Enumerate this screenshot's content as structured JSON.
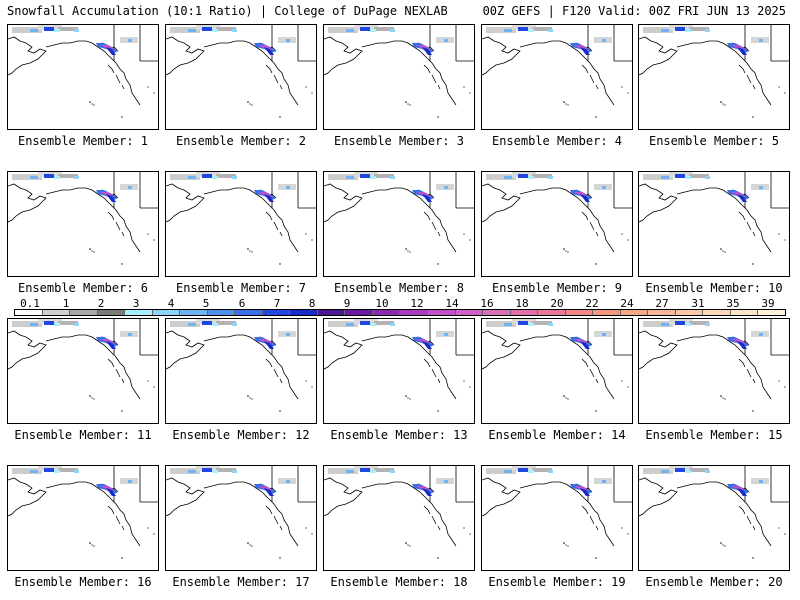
{
  "header": {
    "title": "Snowfall Accumulation (10:1 Ratio) | College of DuPage NEXLAB",
    "run_info": "00Z GEFS | F120 Valid: 00Z FRI JUN 13 2025"
  },
  "panels": [
    {
      "label": "Ensemble Member: 1"
    },
    {
      "label": "Ensemble Member: 2"
    },
    {
      "label": "Ensemble Member: 3"
    },
    {
      "label": "Ensemble Member: 4"
    },
    {
      "label": "Ensemble Member: 5"
    },
    {
      "label": "Ensemble Member: 6"
    },
    {
      "label": "Ensemble Member: 7"
    },
    {
      "label": "Ensemble Member: 8"
    },
    {
      "label": "Ensemble Member: 9"
    },
    {
      "label": "Ensemble Member: 10"
    },
    {
      "label": "Ensemble Member: 11"
    },
    {
      "label": "Ensemble Member: 12"
    },
    {
      "label": "Ensemble Member: 13"
    },
    {
      "label": "Ensemble Member: 14"
    },
    {
      "label": "Ensemble Member: 15"
    },
    {
      "label": "Ensemble Member: 16"
    },
    {
      "label": "Ensemble Member: 17"
    },
    {
      "label": "Ensemble Member: 18"
    },
    {
      "label": "Ensemble Member: 19"
    },
    {
      "label": "Ensemble Member: 20"
    }
  ],
  "colorbar": {
    "ticks": [
      "0.1",
      "1",
      "2",
      "3",
      "4",
      "5",
      "6",
      "7",
      "8",
      "9",
      "10",
      "12",
      "14",
      "16",
      "18",
      "20",
      "22",
      "24",
      "27",
      "31",
      "35",
      "39"
    ],
    "colors": [
      "#ffffff",
      "#d0d0d0",
      "#a8a8a8",
      "#7a7a7a",
      "#a8f0ff",
      "#8fd4f8",
      "#6fb4f0",
      "#4f90ec",
      "#3a6ee8",
      "#2048e0",
      "#1a2cc8",
      "#4a1890",
      "#6a1aa0",
      "#8a2cb0",
      "#a83cc0",
      "#c050c8",
      "#d060c8",
      "#d870b8",
      "#e070a8",
      "#e87898",
      "#f08888",
      "#f29880",
      "#f4a888",
      "#f6b898",
      "#f8c8a8",
      "#fad8b8",
      "#fce6c8",
      "#fff2dc"
    ]
  }
}
